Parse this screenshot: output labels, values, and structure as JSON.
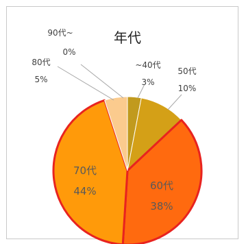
{
  "chart_data": {
    "type": "pie",
    "title": "年代",
    "slices": [
      {
        "label": "~40代",
        "value": 3,
        "percent": "3%",
        "color": "#C19A1E",
        "outline": ""
      },
      {
        "label": "50代",
        "value": 10,
        "percent": "10%",
        "color": "#D4A017",
        "outline": ""
      },
      {
        "label": "60代",
        "value": 38,
        "percent": "38%",
        "color": "#FF6A0F",
        "outline": "#E8231F"
      },
      {
        "label": "70代",
        "value": 44,
        "percent": "44%",
        "color": "#FF9A0A",
        "outline": "#E8231F"
      },
      {
        "label": "80代",
        "value": 5,
        "percent": "5%",
        "color": "#FBCB8E",
        "outline": ""
      },
      {
        "label": "90代~",
        "value": 0,
        "percent": "0%",
        "color": "#F3E2C9",
        "outline": ""
      }
    ]
  }
}
